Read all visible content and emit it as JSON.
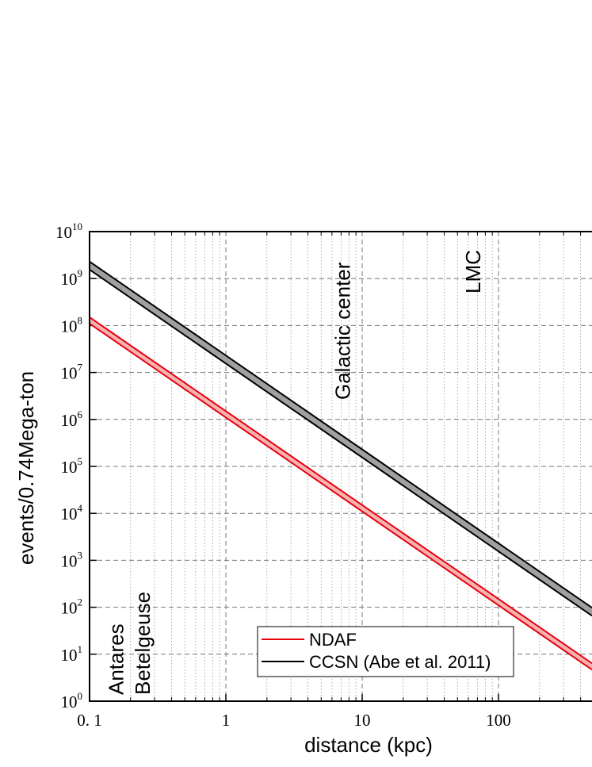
{
  "chart_data": {
    "type": "band-line",
    "x_label": "distance (kpc)",
    "y_label": "events/0.74Mega-ton",
    "log_x": true,
    "log_y": true,
    "grid": true,
    "x": [
      0.1,
      485
    ],
    "series": [
      {
        "name": "NDAF",
        "color": "#e8000b",
        "fill": "#f6b3b3",
        "values": [
          150000000,
          6.38
        ],
        "lower": [
          110000000,
          4.68
        ]
      },
      {
        "name": "CCSN (Abe et al. 2011)",
        "color": "#000000",
        "fill": "#a0a0a0",
        "values": [
          2300000000,
          97.8
        ],
        "lower": [
          1550000000,
          65.9
        ]
      }
    ],
    "xlim": [
      0.1,
      485
    ],
    "ylim": [
      1,
      10000000000
    ],
    "xticks": [
      {
        "value": 0.1,
        "label": "0. 1"
      },
      1,
      10,
      100
    ],
    "xminorticks": [
      0.2,
      0.3,
      0.4,
      0.5,
      0.6,
      0.7,
      0.8,
      0.9,
      2,
      3,
      4,
      5,
      6,
      7,
      8,
      9,
      20,
      30,
      40,
      50,
      60,
      70,
      80,
      90,
      200,
      300,
      400
    ],
    "yticks": [
      {
        "value": 1,
        "label": "10",
        "exponent": "0"
      },
      {
        "value": 10,
        "label": "10",
        "exponent": "1"
      },
      {
        "value": 100,
        "label": "10",
        "exponent": "2"
      },
      {
        "value": 1000,
        "label": "10",
        "exponent": "3"
      },
      {
        "value": 10000,
        "label": "10",
        "exponent": "4"
      },
      {
        "value": 100000,
        "label": "10",
        "exponent": "5"
      },
      {
        "value": 1000000,
        "label": "10",
        "exponent": "6"
      },
      {
        "value": 10000000,
        "label": "10",
        "exponent": "7"
      },
      {
        "value": 100000000,
        "label": "10",
        "exponent": "8"
      },
      {
        "value": 1000000000,
        "label": "10",
        "exponent": "9"
      },
      {
        "value": 10000000000,
        "label": "10",
        "exponent": "10"
      }
    ],
    "annotations": [
      {
        "text": "Antares",
        "x": 0.157
      },
      {
        "text": "Betelgeuse",
        "x": 0.245
      },
      {
        "text": "Galactic center",
        "x": 7.2
      },
      {
        "text": "LMC",
        "x": 65
      }
    ],
    "legend_position": "lower center"
  }
}
